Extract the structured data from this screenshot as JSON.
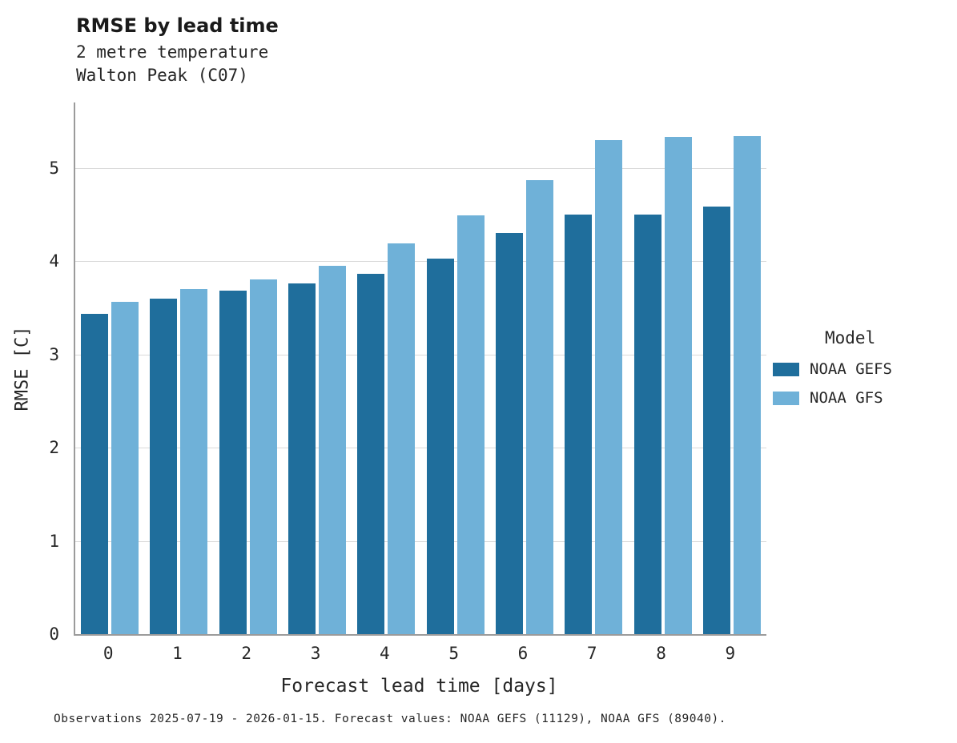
{
  "chart_data": {
    "type": "bar",
    "title": "RMSE by lead time",
    "subtitle": "2 metre temperature",
    "subtitle2": "Walton Peak (C07)",
    "xlabel": "Forecast lead time [days]",
    "ylabel": "RMSE [C]",
    "categories": [
      "0",
      "1",
      "2",
      "3",
      "4",
      "5",
      "6",
      "7",
      "8",
      "9"
    ],
    "yticks": [
      0,
      1,
      2,
      3,
      4,
      5
    ],
    "ylim": [
      0,
      5.7
    ],
    "grid": "horizontal",
    "legend_title": "Model",
    "legend_position": "right",
    "series": [
      {
        "name": "NOAA GEFS",
        "color": "#1f6e9c",
        "values": [
          3.43,
          3.6,
          3.68,
          3.76,
          3.86,
          4.03,
          4.3,
          4.5,
          4.5,
          4.58
        ]
      },
      {
        "name": "NOAA GFS",
        "color": "#6fb1d8",
        "values": [
          3.56,
          3.7,
          3.8,
          3.95,
          4.19,
          4.49,
          4.87,
          5.3,
          5.33,
          5.34
        ]
      }
    ],
    "caption": "Observations 2025-07-19 - 2026-01-15. Forecast values: NOAA GEFS (11129), NOAA GFS (89040)."
  },
  "colors": {
    "grid": "#d9d9d9",
    "spine": "#9b9b9b",
    "text": "#262626"
  }
}
